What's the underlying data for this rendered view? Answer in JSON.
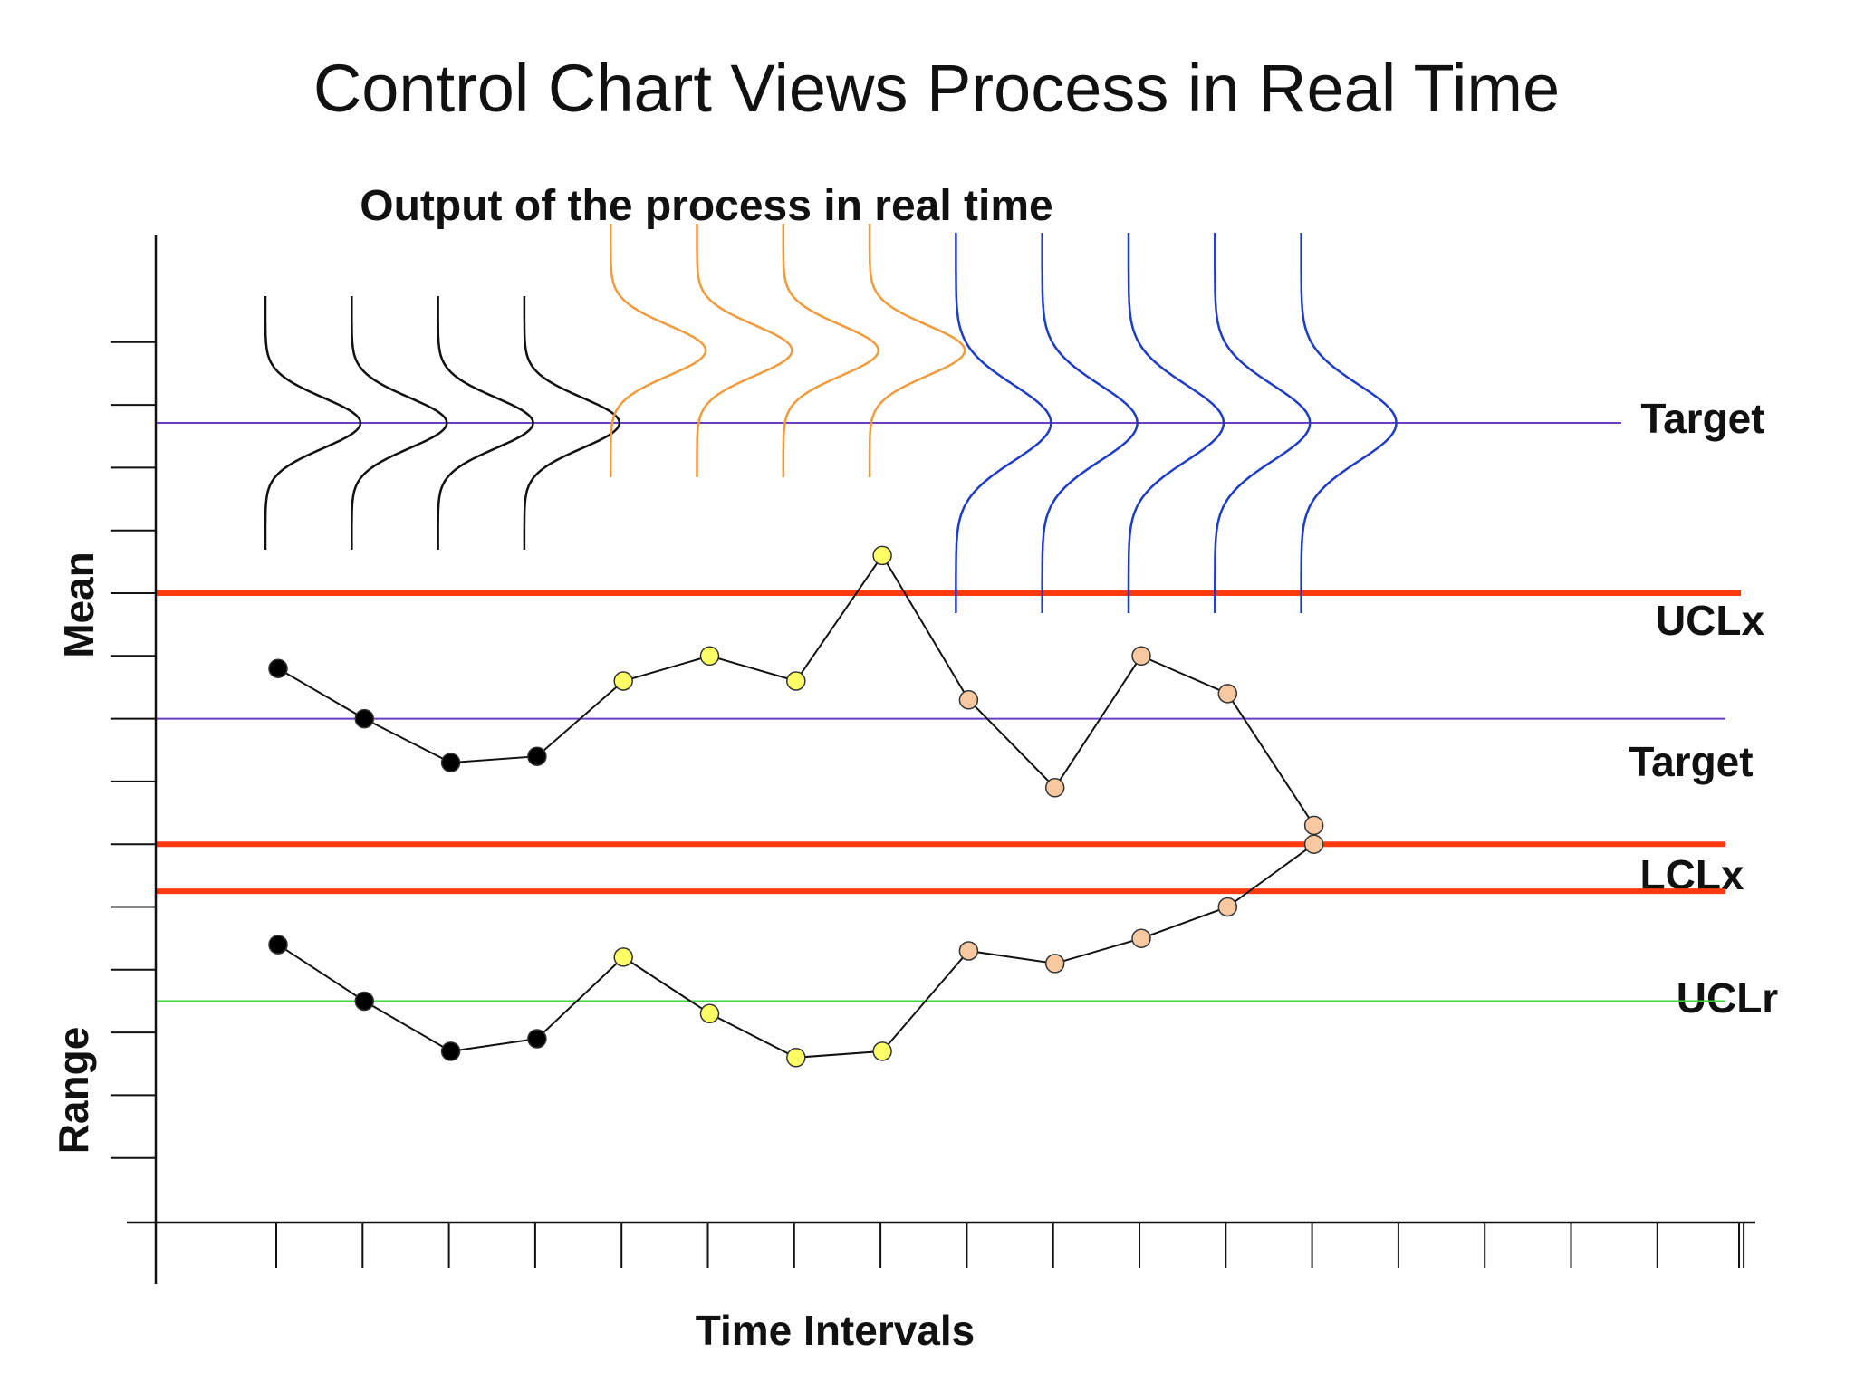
{
  "title": "Control Chart Views Process in Real Time",
  "subtitle": "Output of the process in real time",
  "axes": {
    "mean_label": "Mean",
    "range_label": "Range",
    "x_label": "Time Intervals"
  },
  "limits": {
    "target_top": "Target",
    "ucl_x": "UCLx",
    "target_mean": "Target",
    "lcl_x": "LCLx",
    "ucl_r": "UCLr"
  },
  "colors": {
    "limit": "#ff3a0f",
    "target": "#6a3fc2",
    "center_range": "#3ad63a",
    "curve_black": "#111111",
    "curve_orange": "#f29b3c",
    "curve_blue": "#1e3cc8",
    "point_black": "#000000",
    "point_yellow": "#ffff66",
    "point_peach": "#f8c8a0"
  },
  "chart_data": {
    "type": "line",
    "x": [
      1,
      2,
      3,
      4,
      5,
      6,
      7,
      8,
      9,
      10,
      11,
      12,
      13
    ],
    "series": [
      {
        "values": [
          8.8,
          8.0,
          7.3,
          7.4,
          8.6,
          9.0,
          8.6,
          10.6,
          8.3,
          6.9,
          9.0,
          8.4,
          6.3
        ],
        "colors": [
          "point_black",
          "point_black",
          "point_black",
          "point_black",
          "point_yellow",
          "point_yellow",
          "point_yellow",
          "point_yellow",
          "point_peach",
          "point_peach",
          "point_peach",
          "point_peach",
          "point_peach"
        ]
      },
      {
        "values": [
          4.4,
          3.5,
          2.7,
          2.9,
          4.2,
          3.3,
          2.6,
          2.7,
          4.3,
          4.1,
          4.5,
          5.0,
          6.0
        ],
        "colors": [
          "point_black",
          "point_black",
          "point_black",
          "point_black",
          "point_yellow",
          "point_yellow",
          "point_yellow",
          "point_yellow",
          "point_peach",
          "point_peach",
          "point_peach",
          "point_peach",
          "point_peach"
        ]
      }
    ],
    "distributions": [
      {
        "interval": 1,
        "shift": 0,
        "spread": 1,
        "color": "curve_black"
      },
      {
        "interval": 2,
        "shift": 0,
        "spread": 1,
        "color": "curve_black"
      },
      {
        "interval": 3,
        "shift": 0,
        "spread": 1,
        "color": "curve_black"
      },
      {
        "interval": 4,
        "shift": 0,
        "spread": 1,
        "color": "curve_black"
      },
      {
        "interval": 5,
        "shift": 1,
        "spread": 1,
        "color": "curve_orange"
      },
      {
        "interval": 6,
        "shift": 1,
        "spread": 1,
        "color": "curve_orange"
      },
      {
        "interval": 7,
        "shift": 1,
        "spread": 1,
        "color": "curve_orange"
      },
      {
        "interval": 8,
        "shift": 1,
        "spread": 1,
        "color": "curve_orange"
      },
      {
        "interval": 9,
        "shift": 0,
        "spread": 1.5,
        "color": "curve_blue"
      },
      {
        "interval": 10,
        "shift": 0,
        "spread": 1.5,
        "color": "curve_blue"
      },
      {
        "interval": 11,
        "shift": 0,
        "spread": 1.5,
        "color": "curve_blue"
      },
      {
        "interval": 12,
        "shift": 0,
        "spread": 1.5,
        "color": "curve_blue"
      },
      {
        "interval": 13,
        "shift": 0,
        "spread": 1.5,
        "color": "curve_blue"
      }
    ],
    "mean_limits": {
      "ucl": 10,
      "target": 8,
      "lcl": 6
    },
    "range_limits": {
      "ucl": 5.25,
      "center": 3.5
    },
    "ylim": [
      0,
      18
    ],
    "grid": false
  }
}
